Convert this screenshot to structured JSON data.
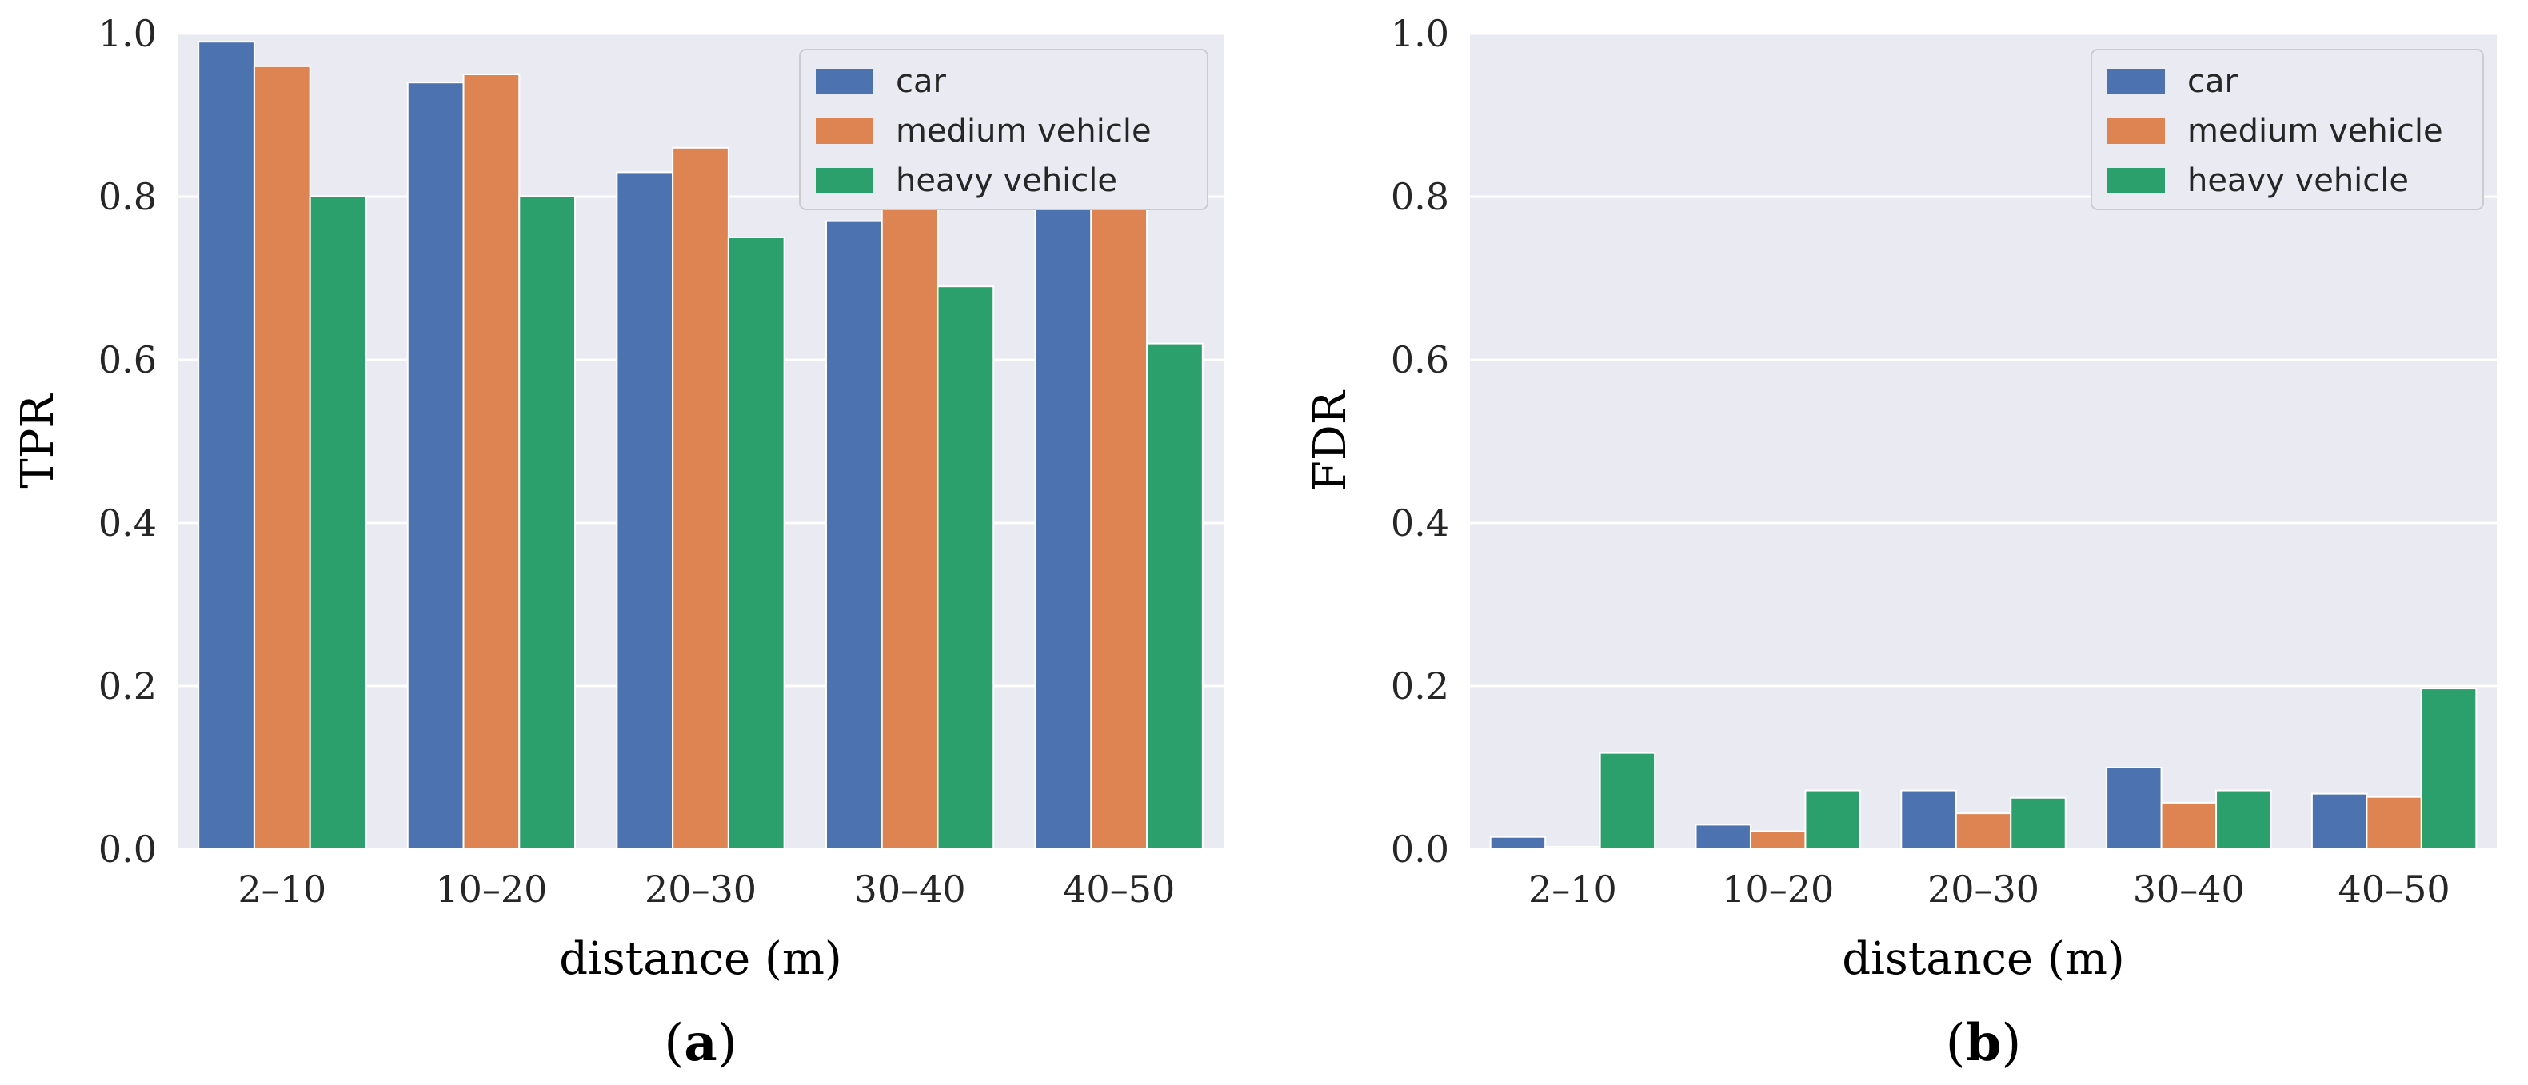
{
  "colors": {
    "car": "#4C72B0",
    "medium vehicle": "#DD8452",
    "heavy vehicle": "#2CA06C",
    "plot_background": "#EAEAF2",
    "grid": "#FFFFFF"
  },
  "chart_data": [
    {
      "type": "bar",
      "panel_label": "a",
      "categories": [
        "2–10",
        "10–20",
        "20–30",
        "30–40",
        "40–50"
      ],
      "series": [
        {
          "name": "car",
          "values": [
            0.99,
            0.94,
            0.83,
            0.77,
            0.79
          ]
        },
        {
          "name": "medium vehicle",
          "values": [
            0.96,
            0.95,
            0.86,
            0.89,
            0.79
          ]
        },
        {
          "name": "heavy vehicle",
          "values": [
            0.8,
            0.8,
            0.75,
            0.69,
            0.62
          ]
        }
      ],
      "xlabel": "distance (m)",
      "ylabel": "TPR",
      "ylim": [
        0,
        1.0
      ],
      "yticks": [
        "0.0",
        "0.2",
        "0.4",
        "0.6",
        "0.8",
        "1.0"
      ],
      "grid": true,
      "legend_position": "top-right"
    },
    {
      "type": "bar",
      "panel_label": "b",
      "categories": [
        "2–10",
        "10–20",
        "20–30",
        "30–40",
        "40–50"
      ],
      "series": [
        {
          "name": "car",
          "values": [
            0.015,
            0.03,
            0.072,
            0.1,
            0.068
          ]
        },
        {
          "name": "medium vehicle",
          "values": [
            0.003,
            0.022,
            0.044,
            0.057,
            0.064
          ]
        },
        {
          "name": "heavy vehicle",
          "values": [
            0.118,
            0.072,
            0.063,
            0.072,
            0.197
          ]
        }
      ],
      "xlabel": "distance (m)",
      "ylabel": "FDR",
      "ylim": [
        0,
        1.0
      ],
      "yticks": [
        "0.0",
        "0.2",
        "0.4",
        "0.6",
        "0.8",
        "1.0"
      ],
      "grid": true,
      "legend_position": "top-right"
    }
  ]
}
